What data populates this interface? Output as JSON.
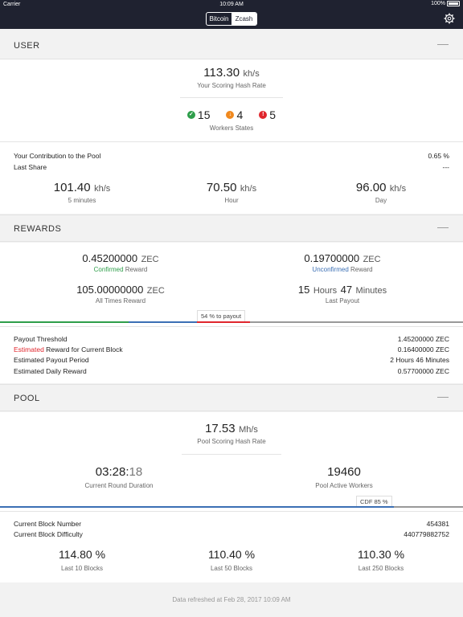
{
  "status": {
    "carrier": "Carrier",
    "time": "10:09 AM",
    "battery": "100%"
  },
  "nav": {
    "tabs": [
      "Bitcoin",
      "Zcash"
    ],
    "selected": "Zcash"
  },
  "user": {
    "title": "USER",
    "collapse": "—",
    "hash_value": "113.30",
    "hash_unit": "kh/s",
    "hash_label": "Your Scoring Hash Rate",
    "workers_ok": "15",
    "workers_warn": "4",
    "workers_err": "5",
    "workers_label": "Workers States",
    "contribution_label": "Your Contribution to the Pool",
    "contribution_value": "0.65 %",
    "last_share_label": "Last Share",
    "last_share_value": "---",
    "rate_5m_value": "101.40",
    "rate_5m_unit": "kh/s",
    "rate_5m_label": "5 minutes",
    "rate_hour_value": "70.50",
    "rate_hour_unit": "kh/s",
    "rate_hour_label": "Hour",
    "rate_day_value": "96.00",
    "rate_day_unit": "kh/s",
    "rate_day_label": "Day"
  },
  "rewards": {
    "title": "REWARDS",
    "collapse": "—",
    "confirmed_value": "0.45200000",
    "confirmed_unit": "ZEC",
    "confirmed_word": "Confirmed",
    "confirmed_suffix": " Reward",
    "unconfirmed_value": "0.19700000",
    "unconfirmed_unit": "ZEC",
    "unconfirmed_word": "Unconfirmed",
    "unconfirmed_suffix": " Reward",
    "alltime_value": "105.00000000",
    "alltime_unit": "ZEC",
    "alltime_label": "All Times Reward",
    "last_payout_h": "15",
    "last_payout_h_unit": "Hours",
    "last_payout_m": "47",
    "last_payout_m_unit": "Minutes",
    "last_payout_label": "Last Payout",
    "progress_label": "54 % to payout",
    "progress_fraction": 0.54,
    "threshold_label": "Payout Threshold",
    "threshold_value": "1.45200000 ZEC",
    "estimated_word": "Estimated",
    "estimated_suffix": " Reward for Current Block",
    "estimated_value": "0.16400000 ZEC",
    "period_label": "Estimated Payout Period",
    "period_value": "2 Hours 46 Minutes",
    "daily_label": "Estimated Daily Reward",
    "daily_value": "0.57700000 ZEC",
    "colors": {
      "confirmed": "#2e9e4a",
      "unconfirmed": "#3b6fb4",
      "progress": "#e0262d"
    }
  },
  "pool": {
    "title": "POOL",
    "collapse": "—",
    "hash_value": "17.53",
    "hash_unit": "Mh/s",
    "hash_label": "Pool Scoring Hash Rate",
    "duration_main": "03:28:",
    "duration_sec": "18",
    "duration_label": "Current Round Duration",
    "workers_value": "19460",
    "workers_label": "Pool Active Workers",
    "cdf_label": "CDF 85 %",
    "cdf_fraction": 0.85,
    "block_number_label": "Current Block Number",
    "block_number_value": "454381",
    "difficulty_label": "Current Block Difficulty",
    "difficulty_value": "440779882752",
    "last10_value": "114.80 %",
    "last10_label": "Last 10 Blocks",
    "last50_value": "110.40 %",
    "last50_label": "Last 50 Blocks",
    "last250_value": "110.30 %",
    "last250_label": "Last 250 Blocks"
  },
  "footer": {
    "refreshed": "Data refreshed at Feb 28, 2017 10:09 AM"
  }
}
